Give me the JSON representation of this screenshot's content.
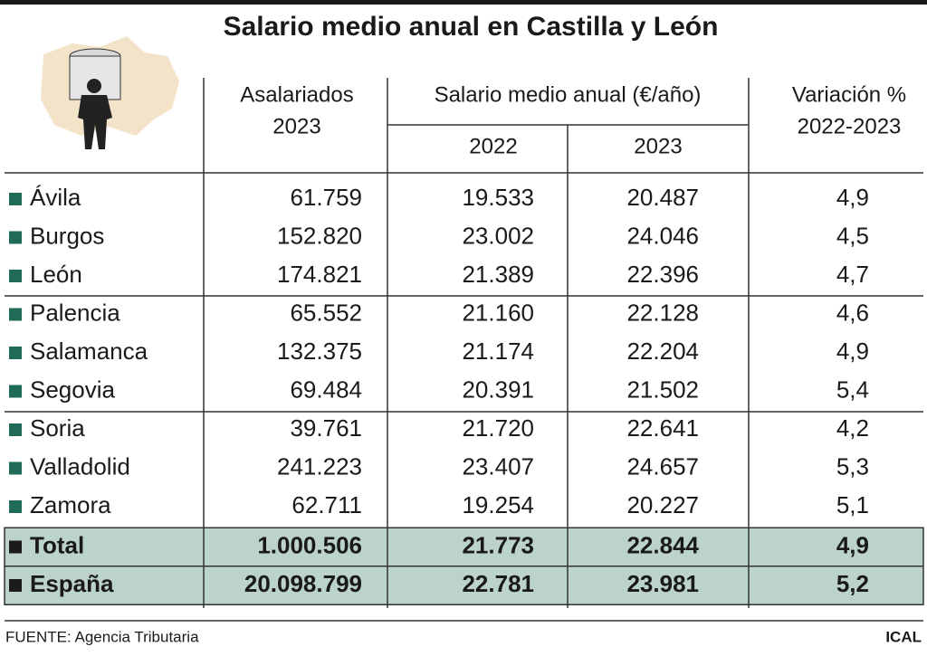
{
  "title": "Salario medio anual en Castilla y León",
  "table": {
    "headers": {
      "workers": [
        "Asalariados",
        "2023"
      ],
      "salary": "Salario medio anual (€/año)",
      "years": [
        "2022",
        "2023"
      ],
      "change": [
        "Variación %",
        "2022-2023"
      ]
    },
    "rows": [
      [
        "Ávila",
        "61.759",
        "19.533",
        "20.487",
        "4,9"
      ],
      [
        "Burgos",
        "152.820",
        "23.002",
        "24.046",
        "4,5"
      ],
      [
        "León",
        "174.821",
        "21.389",
        "22.396",
        "4,7"
      ],
      [
        "Palencia",
        "65.552",
        "21.160",
        "22.128",
        "4,6"
      ],
      [
        "Salamanca",
        "132.375",
        "21.174",
        "22.204",
        "4,9"
      ],
      [
        "Segovia",
        "69.484",
        "20.391",
        "21.502",
        "5,4"
      ],
      [
        "Soria",
        "39.761",
        "21.720",
        "22.641",
        "4,2"
      ],
      [
        "Valladolid",
        "241.223",
        "23.407",
        "24.657",
        "5,3"
      ],
      [
        "Zamora",
        "62.711",
        "19.254",
        "20.227",
        "5,1"
      ]
    ],
    "totals": [
      [
        "Total",
        "1.000.506",
        "21.773",
        "22.844",
        "4,9"
      ],
      [
        "España",
        "20.098.799",
        "22.781",
        "23.981",
        "5,2"
      ]
    ]
  },
  "footer": {
    "source": "FUENTE: Agencia Tributaria",
    "credit": "ICAL"
  }
}
